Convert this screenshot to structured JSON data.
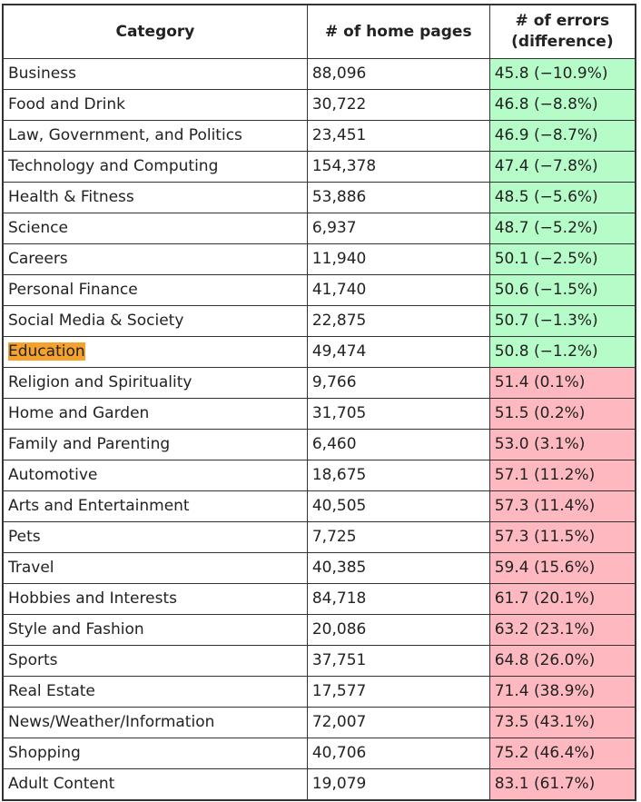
{
  "table": {
    "headers": [
      "Category",
      "# of home pages",
      "# of errors (difference)"
    ],
    "header_errors_line1": "# of errors",
    "header_errors_line2": "(difference)",
    "highlighted_category": "Education",
    "colors": {
      "improved": "#b6fcc8",
      "worse": "#fdb9bf",
      "highlight": "#f5a12e"
    },
    "rows": [
      {
        "category": "Business",
        "pages": "88,096",
        "errors": "45.8 (−10.9%)",
        "status": "improved"
      },
      {
        "category": "Food and Drink",
        "pages": "30,722",
        "errors": "46.8 (−8.8%)",
        "status": "improved"
      },
      {
        "category": "Law, Government, and Politics",
        "pages": "23,451",
        "errors": "46.9 (−8.7%)",
        "status": "improved"
      },
      {
        "category": "Technology and Computing",
        "pages": "154,378",
        "errors": "47.4 (−7.8%)",
        "status": "improved"
      },
      {
        "category": "Health & Fitness",
        "pages": "53,886",
        "errors": "48.5 (−5.6%)",
        "status": "improved"
      },
      {
        "category": "Science",
        "pages": "6,937",
        "errors": "48.7 (−5.2%)",
        "status": "improved"
      },
      {
        "category": "Careers",
        "pages": "11,940",
        "errors": "50.1 (−2.5%)",
        "status": "improved"
      },
      {
        "category": "Personal Finance",
        "pages": "41,740",
        "errors": "50.6 (−1.5%)",
        "status": "improved"
      },
      {
        "category": "Social Media & Society",
        "pages": "22,875",
        "errors": "50.7 (−1.3%)",
        "status": "improved"
      },
      {
        "category": "Education",
        "pages": "49,474",
        "errors": "50.8 (−1.2%)",
        "status": "improved"
      },
      {
        "category": "Religion and Spirituality",
        "pages": "9,766",
        "errors": "51.4 (0.1%)",
        "status": "worse"
      },
      {
        "category": "Home and Garden",
        "pages": "31,705",
        "errors": "51.5 (0.2%)",
        "status": "worse"
      },
      {
        "category": "Family and Parenting",
        "pages": "6,460",
        "errors": "53.0 (3.1%)",
        "status": "worse"
      },
      {
        "category": "Automotive",
        "pages": "18,675",
        "errors": "57.1 (11.2%)",
        "status": "worse"
      },
      {
        "category": "Arts and Entertainment",
        "pages": "40,505",
        "errors": "57.3 (11.4%)",
        "status": "worse"
      },
      {
        "category": "Pets",
        "pages": "7,725",
        "errors": "57.3 (11.5%)",
        "status": "worse"
      },
      {
        "category": "Travel",
        "pages": "40,385",
        "errors": "59.4 (15.6%)",
        "status": "worse"
      },
      {
        "category": "Hobbies and Interests",
        "pages": "84,718",
        "errors": "61.7 (20.1%)",
        "status": "worse"
      },
      {
        "category": "Style and Fashion",
        "pages": "20,086",
        "errors": "63.2 (23.1%)",
        "status": "worse"
      },
      {
        "category": "Sports",
        "pages": "37,751",
        "errors": "64.8 (26.0%)",
        "status": "worse"
      },
      {
        "category": "Real Estate",
        "pages": "17,577",
        "errors": "71.4 (38.9%)",
        "status": "worse"
      },
      {
        "category": "News/Weather/Information",
        "pages": "72,007",
        "errors": "73.5 (43.1%)",
        "status": "worse"
      },
      {
        "category": "Shopping",
        "pages": "40,706",
        "errors": "75.2 (46.4%)",
        "status": "worse"
      },
      {
        "category": "Adult Content",
        "pages": "19,079",
        "errors": "83.1 (61.7%)",
        "status": "worse"
      }
    ]
  }
}
